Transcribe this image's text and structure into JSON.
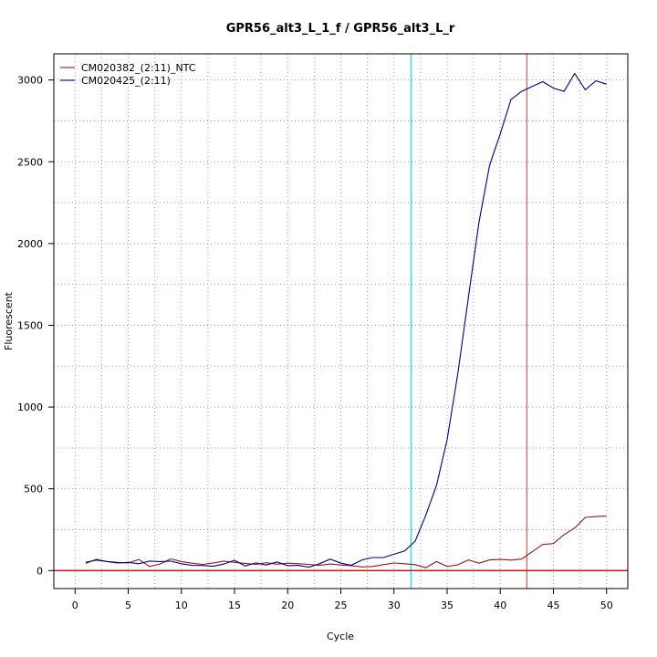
{
  "chart_data": {
    "type": "line",
    "title": "GPR56_alt3_L_1_f / GPR56_alt3_L_r",
    "xlabel": "Cycle",
    "ylabel": "Fluorescent",
    "xlim": [
      -2,
      52
    ],
    "ylim": [
      -110,
      3160
    ],
    "x_ticks": [
      0,
      5,
      10,
      15,
      20,
      25,
      30,
      35,
      40,
      45,
      50
    ],
    "y_ticks": [
      0,
      500,
      1000,
      1500,
      2000,
      2500,
      3000
    ],
    "grid": true,
    "legend_position": "top-left",
    "series": [
      {
        "name": "CM020382_(2:11)_NTC",
        "color": "#8b1a1a",
        "x": [
          1,
          2,
          3,
          4,
          5,
          6,
          7,
          8,
          9,
          10,
          11,
          12,
          13,
          14,
          15,
          16,
          17,
          18,
          19,
          20,
          21,
          22,
          23,
          24,
          25,
          26,
          27,
          28,
          29,
          30,
          31,
          32,
          33,
          34,
          35,
          36,
          37,
          38,
          39,
          40,
          41,
          42,
          43,
          44,
          45,
          46,
          47,
          48,
          49,
          50
        ],
        "values": [
          52,
          63,
          56,
          50,
          46,
          68,
          25,
          40,
          72,
          55,
          45,
          38,
          47,
          58,
          50,
          44,
          38,
          48,
          39,
          45,
          42,
          38,
          32,
          40,
          34,
          30,
          22,
          25,
          36,
          46,
          42,
          36,
          18,
          55,
          25,
          35,
          65,
          45,
          65,
          68,
          64,
          70,
          115,
          160,
          165,
          220,
          260,
          325,
          330,
          333
        ]
      },
      {
        "name": "CM020425_(2:11)",
        "color": "#00008b",
        "x": [
          1,
          2,
          3,
          4,
          5,
          6,
          7,
          8,
          9,
          10,
          11,
          12,
          13,
          14,
          15,
          16,
          17,
          18,
          19,
          20,
          21,
          22,
          23,
          24,
          25,
          26,
          27,
          28,
          29,
          30,
          31,
          32,
          33,
          34,
          35,
          36,
          37,
          38,
          39,
          40,
          41,
          42,
          43,
          44,
          45,
          46,
          47,
          48,
          49,
          50
        ],
        "values": [
          45,
          68,
          55,
          47,
          50,
          42,
          58,
          55,
          58,
          42,
          32,
          31,
          26,
          40,
          63,
          28,
          47,
          34,
          53,
          30,
          32,
          21,
          42,
          70,
          45,
          33,
          65,
          80,
          80,
          100,
          120,
          180,
          340,
          520,
          800,
          1200,
          1670,
          2130,
          2480,
          2670,
          2880,
          2930,
          2960,
          2990,
          2950,
          2930,
          3040,
          2940,
          2995,
          2975
        ]
      }
    ],
    "threshold": {
      "y": 0,
      "color": "#e00000"
    },
    "vertical_markers": [
      {
        "x": 31.6,
        "color": "#00e5ee"
      },
      {
        "x": 42.5,
        "color": "#cd5c5c"
      }
    ]
  }
}
